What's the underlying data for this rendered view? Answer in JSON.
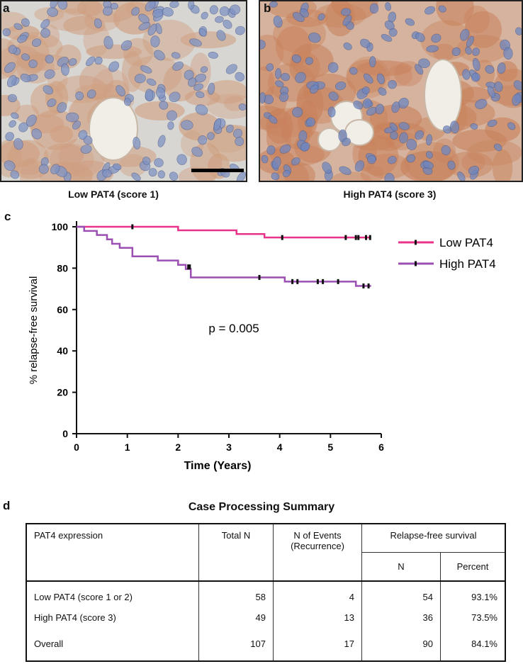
{
  "panels": {
    "a": {
      "letter": "a",
      "caption": "Low PAT4 (score 1)"
    },
    "b": {
      "letter": "b",
      "caption": "High PAT4 (score 3)"
    },
    "c": {
      "letter": "c"
    },
    "d": {
      "letter": "d"
    }
  },
  "chart_data": {
    "type": "line",
    "title": "",
    "xlabel": "Time (Years)",
    "ylabel": "% relapse-free survival",
    "xlim": [
      0,
      6
    ],
    "ylim": [
      0,
      100
    ],
    "x_ticks": [
      "0",
      "1",
      "2",
      "3",
      "4",
      "5",
      "6"
    ],
    "y_ticks": [
      "0",
      "20",
      "40",
      "60",
      "80",
      "100"
    ],
    "annotation": "p = 0.005",
    "legend_position": "top-right",
    "series": [
      {
        "name": "Low PAT4",
        "color": "#e8338a",
        "steps": [
          [
            0,
            100
          ],
          [
            2.0,
            98.3
          ],
          [
            3.15,
            96.5
          ],
          [
            3.7,
            94.8
          ],
          [
            5.8,
            94.8
          ]
        ],
        "censors": [
          [
            1.1,
            100
          ],
          [
            4.05,
            94.8
          ],
          [
            5.3,
            94.8
          ],
          [
            5.5,
            94.8
          ],
          [
            5.55,
            94.8
          ],
          [
            5.7,
            94.8
          ],
          [
            5.78,
            94.8
          ]
        ]
      },
      {
        "name": "High PAT4",
        "color": "#9b4fb3",
        "steps": [
          [
            0,
            100
          ],
          [
            0.15,
            98
          ],
          [
            0.4,
            96
          ],
          [
            0.6,
            93.9
          ],
          [
            0.7,
            91.8
          ],
          [
            0.85,
            89.8
          ],
          [
            1.1,
            85.7
          ],
          [
            1.6,
            83.7
          ],
          [
            2.0,
            81.6
          ],
          [
            2.15,
            79.6
          ],
          [
            2.25,
            75.5
          ],
          [
            3.6,
            75.5
          ],
          [
            4.1,
            73.5
          ],
          [
            5.5,
            71.4
          ],
          [
            5.8,
            71.4
          ]
        ],
        "censors": [
          [
            2.2,
            80.6
          ],
          [
            2.23,
            80.6
          ],
          [
            3.6,
            75.5
          ],
          [
            4.25,
            73.5
          ],
          [
            4.35,
            73.5
          ],
          [
            4.75,
            73.5
          ],
          [
            4.85,
            73.5
          ],
          [
            5.15,
            73.5
          ],
          [
            5.65,
            71.4
          ],
          [
            5.75,
            71.4
          ]
        ]
      }
    ]
  },
  "table": {
    "title": "Case Processing Summary",
    "headers": {
      "col1": "PAT4 expression",
      "col2": "Total N",
      "col3": "N of Events (Recurrence)",
      "col4": "Relapse-free survival",
      "sub_n": "N",
      "sub_pct": "Percent"
    },
    "rows": [
      {
        "label": "Low PAT4 (score 1 or 2)",
        "total": "58",
        "events": "4",
        "n": "54",
        "pct": "93.1%"
      },
      {
        "label": "High PAT4 (score 3)",
        "total": "49",
        "events": "13",
        "n": "36",
        "pct": "73.5%"
      },
      {
        "label": "Overall",
        "total": "107",
        "events": "17",
        "n": "90",
        "pct": "84.1%"
      }
    ]
  }
}
